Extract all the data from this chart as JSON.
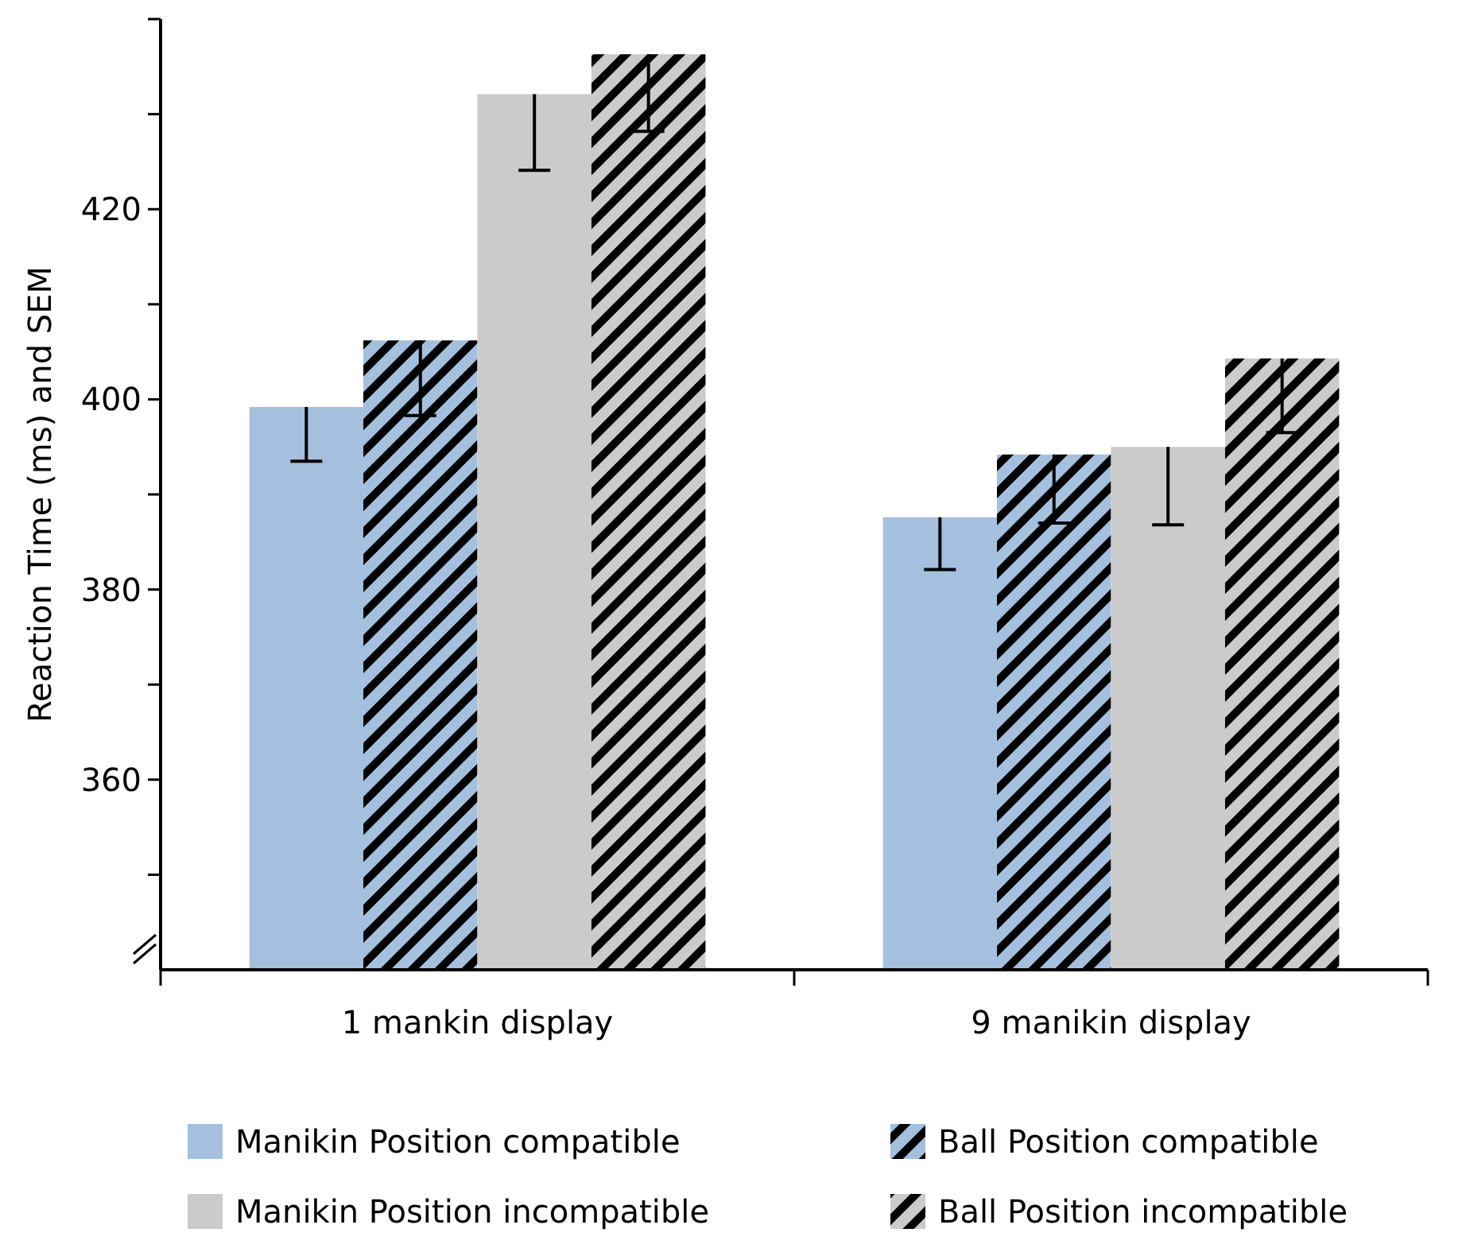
{
  "chart_data": {
    "type": "bar",
    "ylabel": "Reaction Time (ms) and SEM",
    "categories": [
      "1 mankin display",
      "9 manikin display"
    ],
    "ylim": [
      340,
      440
    ],
    "yticks": [
      {
        "value": 350,
        "label": null
      },
      360,
      {
        "value": 370,
        "label": null
      },
      380,
      {
        "value": 390,
        "label": null
      },
      400,
      {
        "value": 410,
        "label": null
      },
      420,
      {
        "value": 430,
        "label": null
      },
      {
        "value": 440,
        "label": null
      }
    ],
    "series": [
      {
        "name": "Manikin Position compatible",
        "color": "#a4c0de",
        "values": [
          399.2,
          387.6
        ],
        "errors": [
          [
            393.5,
            399.2
          ],
          [
            382.1,
            387.6
          ]
        ]
      },
      {
        "name": "Ball Position compatible",
        "color": "#a4c0de",
        "values": [
          406.2,
          394.2
        ],
        "errors": [
          [
            398.3,
            406.2
          ],
          [
            387.0,
            394.2
          ]
        ]
      },
      {
        "name": "Manikin Position incompatible",
        "color": "#cbcbcb",
        "values": [
          432.1,
          395.0
        ],
        "errors": [
          [
            424.1,
            432.1
          ],
          [
            386.8,
            395.0
          ]
        ]
      },
      {
        "name": "Ball Position incompatible",
        "color": "#cbcbcb",
        "values": [
          436.3,
          404.3
        ],
        "errors": [
          [
            428.2,
            436.3
          ],
          [
            396.5,
            404.3
          ]
        ]
      }
    ],
    "legend": "bottom",
    "grid": false
  }
}
